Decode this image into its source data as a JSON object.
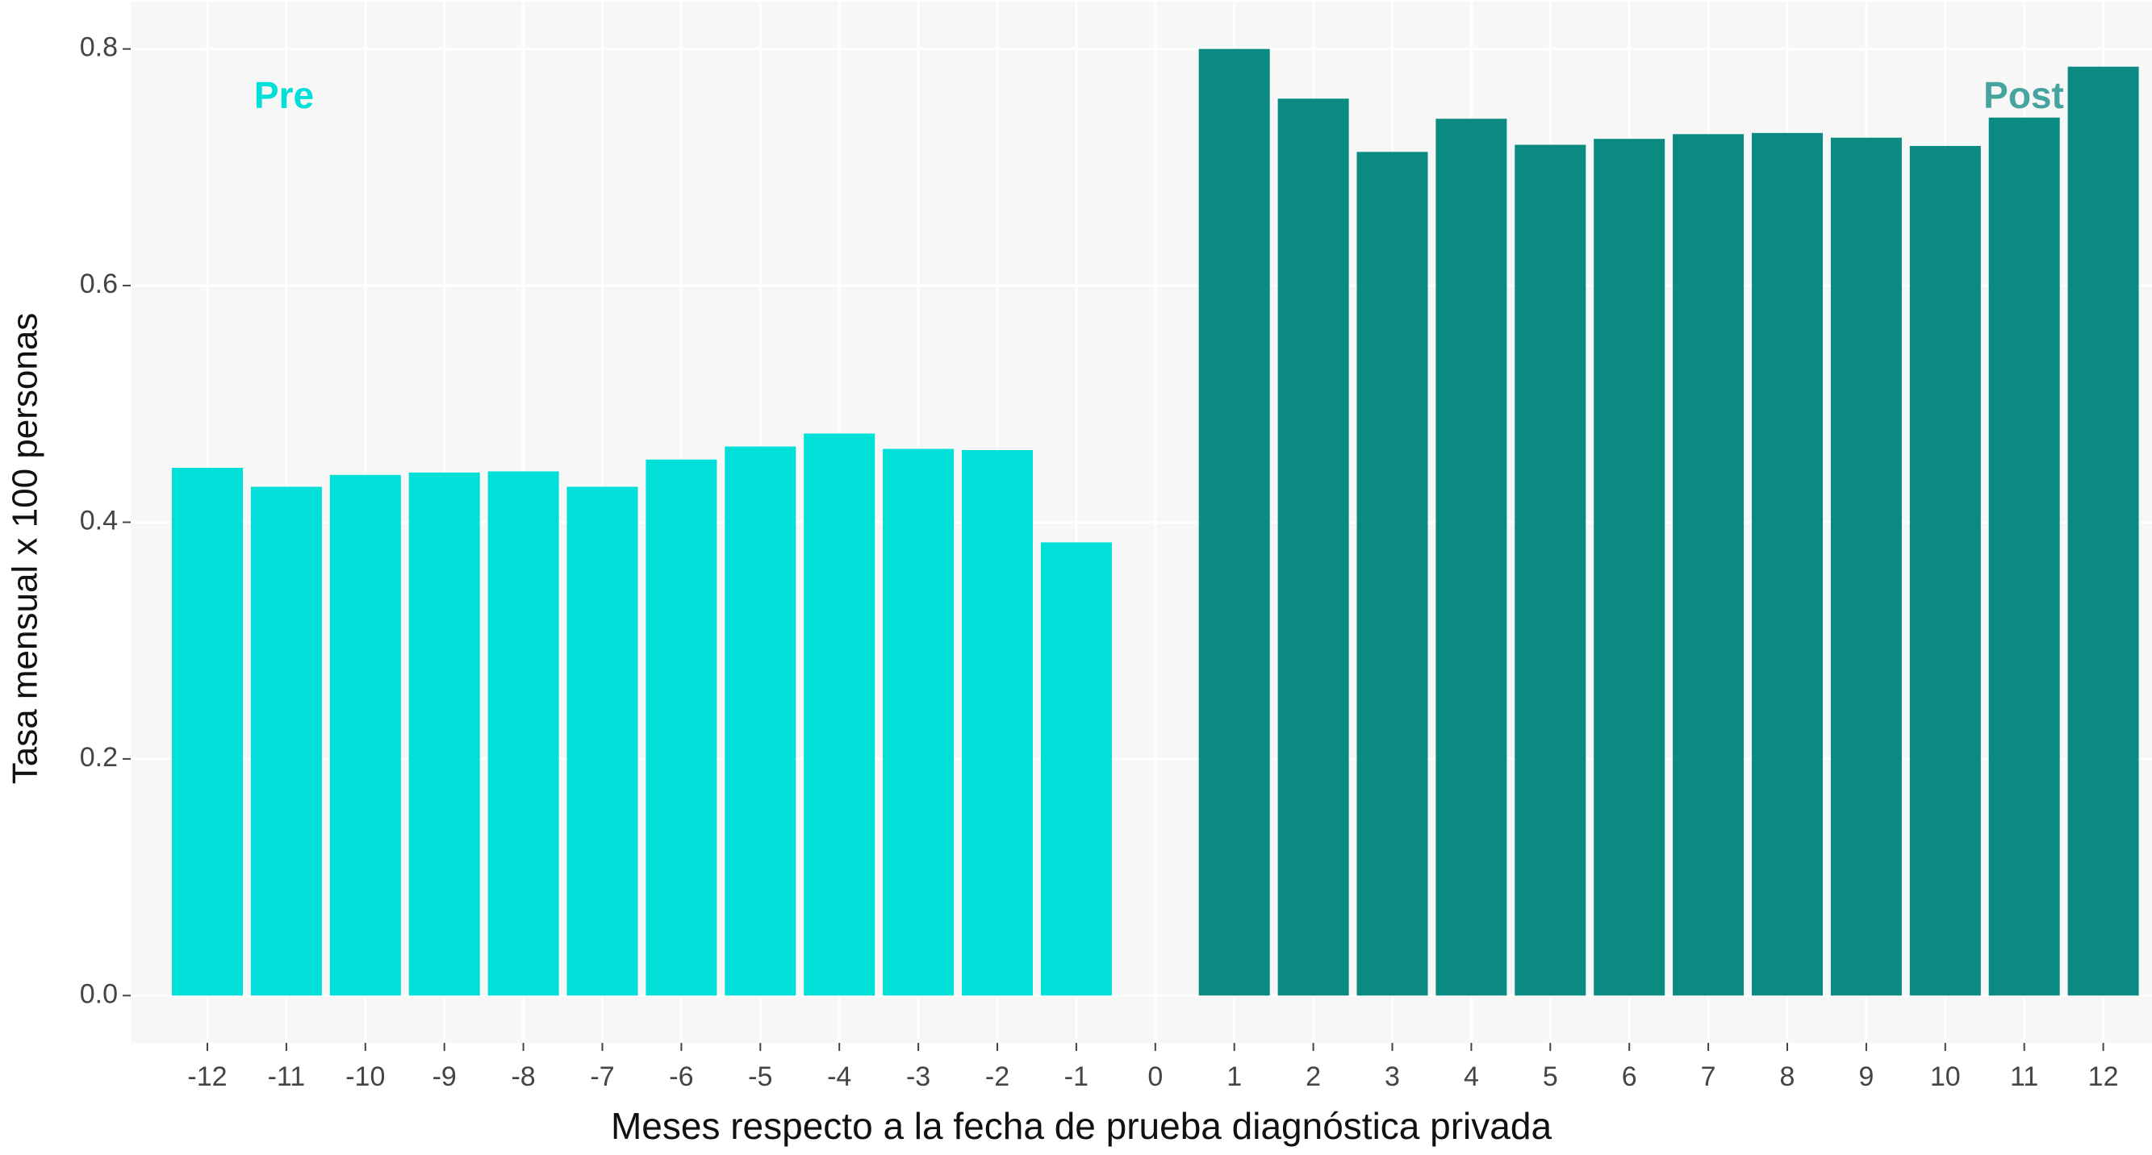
{
  "chart_data": {
    "type": "bar",
    "x_label": "Meses respecto a la fecha de prueba diagnóstica privada",
    "y_label": "Tasa mensual x 100 personas",
    "categories": [
      "-12",
      "-11",
      "-10",
      "-9",
      "-8",
      "-7",
      "-6",
      "-5",
      "-4",
      "-3",
      "-2",
      "-1",
      "0",
      "1",
      "2",
      "3",
      "4",
      "5",
      "6",
      "7",
      "8",
      "9",
      "10",
      "11",
      "12"
    ],
    "series": [
      {
        "name": "Pre",
        "color": "#00dfd8",
        "values": [
          0.446,
          0.43,
          0.44,
          0.442,
          0.443,
          0.43,
          0.453,
          0.464,
          0.475,
          0.462,
          0.461,
          0.383,
          null,
          null,
          null,
          null,
          null,
          null,
          null,
          null,
          null,
          null,
          null,
          null,
          null
        ]
      },
      {
        "name": "Post",
        "color": "#0a8a80",
        "values": [
          null,
          null,
          null,
          null,
          null,
          null,
          null,
          null,
          null,
          null,
          null,
          null,
          null,
          0.8,
          0.758,
          0.713,
          0.741,
          0.719,
          0.724,
          0.728,
          0.729,
          0.725,
          0.718,
          0.742,
          0.785
        ]
      }
    ],
    "ylim": [
      -0.04,
      0.84
    ],
    "yticks": [
      {
        "value": 0,
        "label": "0.0"
      },
      {
        "value": 0.2,
        "label": "0.2"
      },
      {
        "value": 0.4,
        "label": "0.4"
      },
      {
        "value": 0.6,
        "label": "0.6"
      },
      {
        "value": 0.8,
        "label": "0.8"
      }
    ],
    "grid": true
  }
}
